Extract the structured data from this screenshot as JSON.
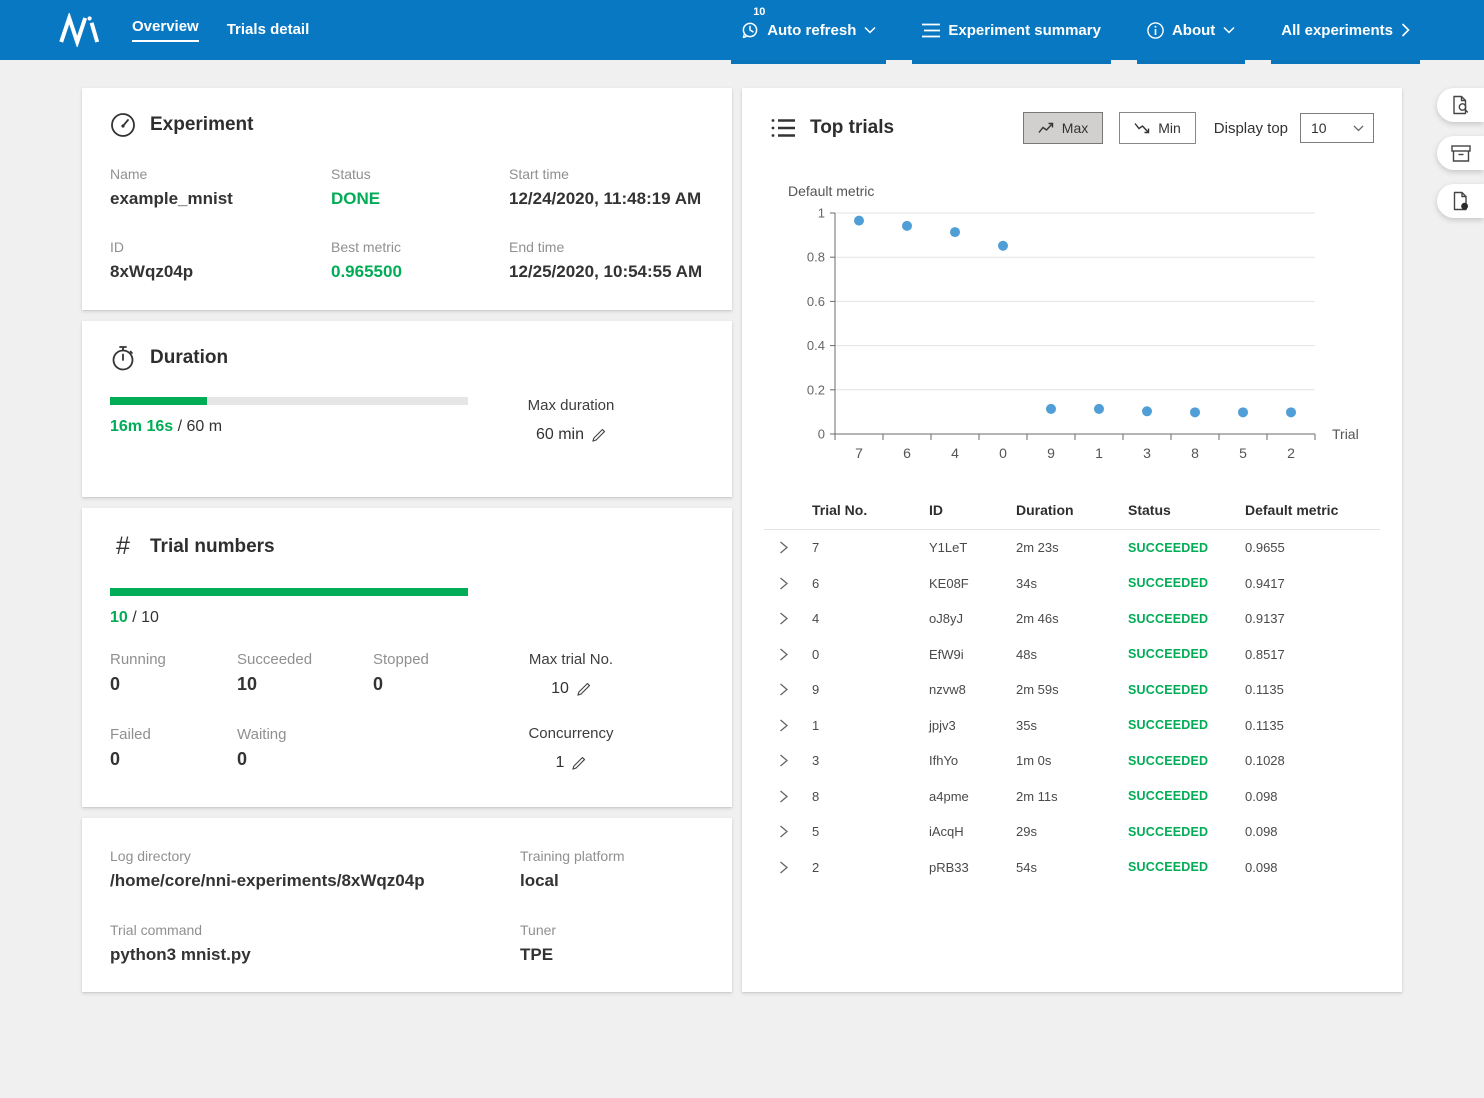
{
  "colors": {
    "navbar_blue": "#0878c2",
    "success_green": "#00ad56",
    "scatter_blue": "#4f9ed6",
    "page_background": "#f0f0f0"
  },
  "navbar": {
    "tabs": [
      {
        "label": "Overview",
        "active": true
      },
      {
        "label": "Trials detail",
        "active": false
      }
    ],
    "auto_refresh": {
      "label": "Auto refresh",
      "badge": "10"
    },
    "experiment_summary_label": "Experiment summary",
    "about_label": "About",
    "all_experiments_label": "All experiments"
  },
  "experiment_card": {
    "title": "Experiment",
    "fields": [
      {
        "label": "Name",
        "value": "example_mnist"
      },
      {
        "label": "Status",
        "value": "DONE"
      },
      {
        "label": "Start time",
        "value": "12/24/2020, 11:48:19 AM"
      },
      {
        "label": "ID",
        "value": "8xWqz04p"
      },
      {
        "label": "Best metric",
        "value": "0.965500"
      },
      {
        "label": "End time",
        "value": "12/25/2020, 10:54:55 AM"
      }
    ]
  },
  "duration_card": {
    "title": "Duration",
    "progress_percent": 27,
    "elapsed": "16m 16s",
    "separator": " / ",
    "total": "60 m",
    "max_duration_label": "Max duration",
    "max_duration_value": "60 min"
  },
  "trial_numbers_card": {
    "title": "Trial numbers",
    "progress_percent": 100,
    "done": "10",
    "separator": " / ",
    "total": "10",
    "counters": [
      {
        "label": "Running",
        "value": "0"
      },
      {
        "label": "Succeeded",
        "value": "10"
      },
      {
        "label": "Stopped",
        "value": "0"
      },
      {
        "label": "Failed",
        "value": "0"
      },
      {
        "label": "Waiting",
        "value": "0"
      }
    ],
    "max_trial_label": "Max trial No.",
    "max_trial_value": "10",
    "concurrency_label": "Concurrency",
    "concurrency_value": "1"
  },
  "config_card": {
    "fields": [
      {
        "label": "Log directory",
        "value": "/home/core/nni-experiments/8xWqz04p"
      },
      {
        "label": "Training platform",
        "value": "local"
      },
      {
        "label": "Trial command",
        "value": "python3 mnist.py"
      },
      {
        "label": "Tuner",
        "value": "TPE"
      }
    ]
  },
  "top_trials": {
    "title": "Top trials",
    "max_label": "Max",
    "min_label": "Min",
    "display_top_label": "Display top",
    "display_top_value": "10"
  },
  "chart_data": {
    "type": "scatter",
    "ylabel": "Default metric",
    "xlabel": "Trial",
    "categories": [
      "7",
      "6",
      "4",
      "0",
      "9",
      "1",
      "3",
      "8",
      "5",
      "2"
    ],
    "values": [
      0.9655,
      0.9417,
      0.9137,
      0.8517,
      0.1135,
      0.1135,
      0.1028,
      0.098,
      0.098,
      0.098
    ],
    "ylim": [
      0,
      1
    ],
    "yticks": [
      0,
      0.2,
      0.4,
      0.6,
      0.8,
      1
    ],
    "grid": true,
    "legend_position": "none",
    "point_color": "#4f9ed6"
  },
  "table": {
    "headers": [
      "Trial No.",
      "ID",
      "Duration",
      "Status",
      "Default metric"
    ],
    "rows": [
      {
        "trial_no": "7",
        "id": "Y1LeT",
        "duration": "2m 23s",
        "status": "SUCCEEDED",
        "metric": "0.9655"
      },
      {
        "trial_no": "6",
        "id": "KE08F",
        "duration": "34s",
        "status": "SUCCEEDED",
        "metric": "0.9417"
      },
      {
        "trial_no": "4",
        "id": "oJ8yJ",
        "duration": "2m 46s",
        "status": "SUCCEEDED",
        "metric": "0.9137"
      },
      {
        "trial_no": "0",
        "id": "EfW9i",
        "duration": "48s",
        "status": "SUCCEEDED",
        "metric": "0.8517"
      },
      {
        "trial_no": "9",
        "id": "nzvw8",
        "duration": "2m 59s",
        "status": "SUCCEEDED",
        "metric": "0.1135"
      },
      {
        "trial_no": "1",
        "id": "jpjv3",
        "duration": "35s",
        "status": "SUCCEEDED",
        "metric": "0.1135"
      },
      {
        "trial_no": "3",
        "id": "IfhYo",
        "duration": "1m 0s",
        "status": "SUCCEEDED",
        "metric": "0.1028"
      },
      {
        "trial_no": "8",
        "id": "a4pme",
        "duration": "2m 11s",
        "status": "SUCCEEDED",
        "metric": "0.098"
      },
      {
        "trial_no": "5",
        "id": "iAcqH",
        "duration": "29s",
        "status": "SUCCEEDED",
        "metric": "0.098"
      },
      {
        "trial_no": "2",
        "id": "pRB33",
        "duration": "54s",
        "status": "SUCCEEDED",
        "metric": "0.098"
      }
    ]
  },
  "side_buttons": [
    {
      "icon": "document-search-icon"
    },
    {
      "icon": "archive-icon"
    },
    {
      "icon": "document-log-icon"
    }
  ]
}
